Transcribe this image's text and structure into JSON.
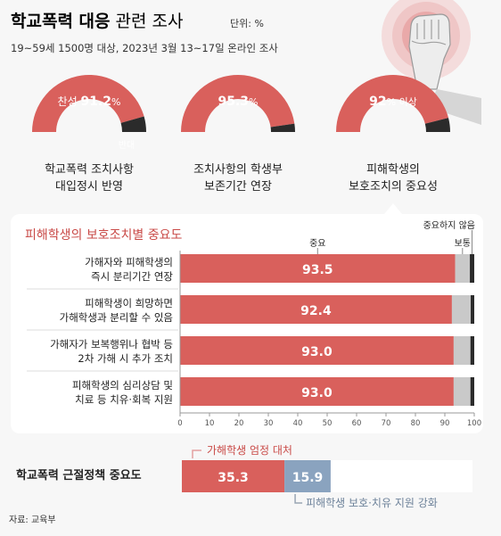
{
  "header": {
    "title_bold": "학교폭력 대응",
    "title_rest": " 관련 조사",
    "unit": "단위: %",
    "subtitle": "19~59세 1500명 대상, 2023년 3월 13~17일 온라인 조사"
  },
  "colors": {
    "red": "#d9605c",
    "dark": "#2b2b2b",
    "gray": "#c9c9c9",
    "blue": "#8aa3bf",
    "pink": "#e3a1a1",
    "text_red": "#c94a47"
  },
  "chart_data": [
    {
      "type": "pie",
      "label_lines": [
        "학교폭력 조치사항",
        "대입정시 반영"
      ],
      "segments": [
        {
          "name": "찬성",
          "value": 91.2
        },
        {
          "name": "반대",
          "value": 8.8
        }
      ],
      "center_label": {
        "prefix": "찬성 ",
        "value": "91.2",
        "suffix": "%"
      },
      "minor_label": "반대"
    },
    {
      "type": "pie",
      "label_lines": [
        "조치사항의 학생부",
        "보존기간 연장"
      ],
      "segments": [
        {
          "value": 95.3
        },
        {
          "value": 4.7
        }
      ],
      "center_label": {
        "prefix": "",
        "value": "95.3",
        "suffix": "%"
      }
    },
    {
      "type": "pie",
      "label_lines": [
        "피해학생의",
        "보호조치의 중요성"
      ],
      "segments": [
        {
          "value": 92
        },
        {
          "value": 8
        }
      ],
      "center_label": {
        "prefix": "",
        "value": "92",
        "suffix": "% 이상"
      }
    },
    {
      "type": "bar",
      "title": "피해학생의 보호조치별 중요도",
      "legend": [
        "중요",
        "보통",
        "중요하지 않음"
      ],
      "categories": [
        [
          "가해자와 피해학생의",
          "즉시 분리기간 연장"
        ],
        [
          "피해학생이 희망하면",
          "가해학생과 분리할 수 있음"
        ],
        [
          "가해자가 보복행위나 협박 등",
          "2차 가해 시 추가 조치"
        ],
        [
          "피해학생의 심리상담 및",
          "치료 등 치유·회복 지원"
        ]
      ],
      "series": [
        {
          "name": "중요",
          "values": [
            93.5,
            92.4,
            93.0,
            93.0
          ]
        },
        {
          "name": "보통",
          "values": [
            5.0,
            6.4,
            5.7,
            5.7
          ]
        },
        {
          "name": "중요하지 않음",
          "values": [
            1.5,
            1.2,
            1.3,
            1.3
          ]
        }
      ],
      "value_labels": [
        "93.5",
        "92.4",
        "93.0",
        "93.0"
      ],
      "xlim": [
        0,
        100
      ],
      "xticks": [
        0,
        10,
        20,
        30,
        40,
        50,
        60,
        70,
        80,
        90,
        100
      ]
    },
    {
      "type": "bar",
      "title": "학교폭력 근절정책 중요도",
      "series": [
        {
          "name": "가해학생 엄정 대처",
          "values": [
            35.3
          ]
        },
        {
          "name": "피해학생 보호·치유 지원 강화",
          "values": [
            15.9
          ]
        }
      ],
      "value_labels": [
        "35.3",
        "15.9"
      ],
      "xlim": [
        0,
        100
      ]
    }
  ],
  "footer": {
    "source": "자료: 교육부"
  }
}
